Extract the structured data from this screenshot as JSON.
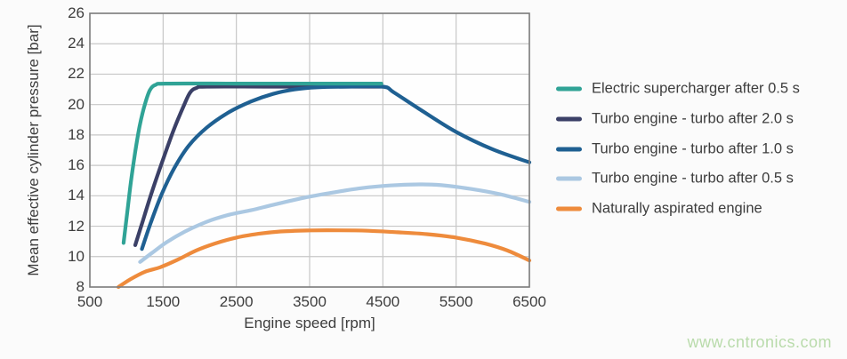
{
  "page": {
    "watermark": "www.cntronics.com",
    "watermark_color": "#b9dbab",
    "background": "#fbfbfb"
  },
  "chart_data": {
    "type": "line",
    "title": "",
    "xlabel": "Engine speed [rpm]",
    "ylabel": "Mean effective cylinder pressure [bar]",
    "xlim": [
      500,
      6500
    ],
    "ylim": [
      8,
      26
    ],
    "xticks": [
      500,
      1500,
      2500,
      3500,
      4500,
      5500,
      6500
    ],
    "yticks": [
      8,
      10,
      12,
      14,
      16,
      18,
      20,
      22,
      24,
      26
    ],
    "grid": true,
    "legend_position": "right",
    "grid_color": "#c7c7c7",
    "border_color": "#7d7d7d",
    "plot_bg": "#fefefe",
    "line_width": 4.2,
    "draw_order": [
      4,
      3,
      1,
      2,
      0
    ],
    "series": [
      {
        "name": "Electric supercharger after 0.5 s",
        "color": "#30a396",
        "points": [
          [
            960,
            10.9
          ],
          [
            1010,
            12.9
          ],
          [
            1060,
            14.9
          ],
          [
            1120,
            16.9
          ],
          [
            1180,
            18.6
          ],
          [
            1250,
            20.0
          ],
          [
            1320,
            20.95
          ],
          [
            1400,
            21.3
          ],
          [
            1550,
            21.38
          ],
          [
            2500,
            21.38
          ],
          [
            3500,
            21.38
          ],
          [
            4480,
            21.38
          ]
        ]
      },
      {
        "name": "Turbo engine - turbo after 2.0 s",
        "color": "#3b4067",
        "points": [
          [
            1120,
            10.75
          ],
          [
            1220,
            12.3
          ],
          [
            1350,
            14.3
          ],
          [
            1500,
            16.4
          ],
          [
            1650,
            18.4
          ],
          [
            1780,
            19.9
          ],
          [
            1870,
            20.8
          ],
          [
            1960,
            21.1
          ],
          [
            2100,
            21.18
          ],
          [
            3000,
            21.18
          ],
          [
            4500,
            21.18
          ]
        ]
      },
      {
        "name": "Turbo engine - turbo after 1.0 s",
        "color": "#1f6092",
        "points": [
          [
            1210,
            10.5
          ],
          [
            1330,
            12.2
          ],
          [
            1480,
            14.1
          ],
          [
            1650,
            15.8
          ],
          [
            1850,
            17.3
          ],
          [
            2100,
            18.5
          ],
          [
            2400,
            19.5
          ],
          [
            2700,
            20.2
          ],
          [
            3000,
            20.7
          ],
          [
            3300,
            21.0
          ],
          [
            3600,
            21.13
          ],
          [
            4000,
            21.18
          ],
          [
            4500,
            21.18
          ],
          [
            4650,
            20.8
          ],
          [
            5000,
            19.7
          ],
          [
            5500,
            18.2
          ],
          [
            6000,
            17.05
          ],
          [
            6500,
            16.2
          ]
        ]
      },
      {
        "name": "Turbo engine - turbo after 0.5 s",
        "color": "#abc8e2",
        "points": [
          [
            1185,
            9.65
          ],
          [
            1350,
            10.25
          ],
          [
            1550,
            10.95
          ],
          [
            1800,
            11.65
          ],
          [
            2100,
            12.3
          ],
          [
            2400,
            12.75
          ],
          [
            2700,
            13.05
          ],
          [
            3000,
            13.4
          ],
          [
            3400,
            13.85
          ],
          [
            3800,
            14.2
          ],
          [
            4200,
            14.5
          ],
          [
            4600,
            14.68
          ],
          [
            5000,
            14.75
          ],
          [
            5300,
            14.7
          ],
          [
            5700,
            14.45
          ],
          [
            6100,
            14.1
          ],
          [
            6500,
            13.6
          ]
        ]
      },
      {
        "name": "Naturally aspirated engine",
        "color": "#ee8b3c",
        "points": [
          [
            890,
            8.0
          ],
          [
            1050,
            8.5
          ],
          [
            1250,
            9.0
          ],
          [
            1460,
            9.3
          ],
          [
            1700,
            9.8
          ],
          [
            1950,
            10.4
          ],
          [
            2200,
            10.85
          ],
          [
            2500,
            11.25
          ],
          [
            2800,
            11.5
          ],
          [
            3100,
            11.65
          ],
          [
            3500,
            11.72
          ],
          [
            3900,
            11.73
          ],
          [
            4300,
            11.7
          ],
          [
            4700,
            11.6
          ],
          [
            5100,
            11.48
          ],
          [
            5500,
            11.25
          ],
          [
            5900,
            10.85
          ],
          [
            6200,
            10.4
          ],
          [
            6500,
            9.75
          ]
        ]
      }
    ]
  }
}
